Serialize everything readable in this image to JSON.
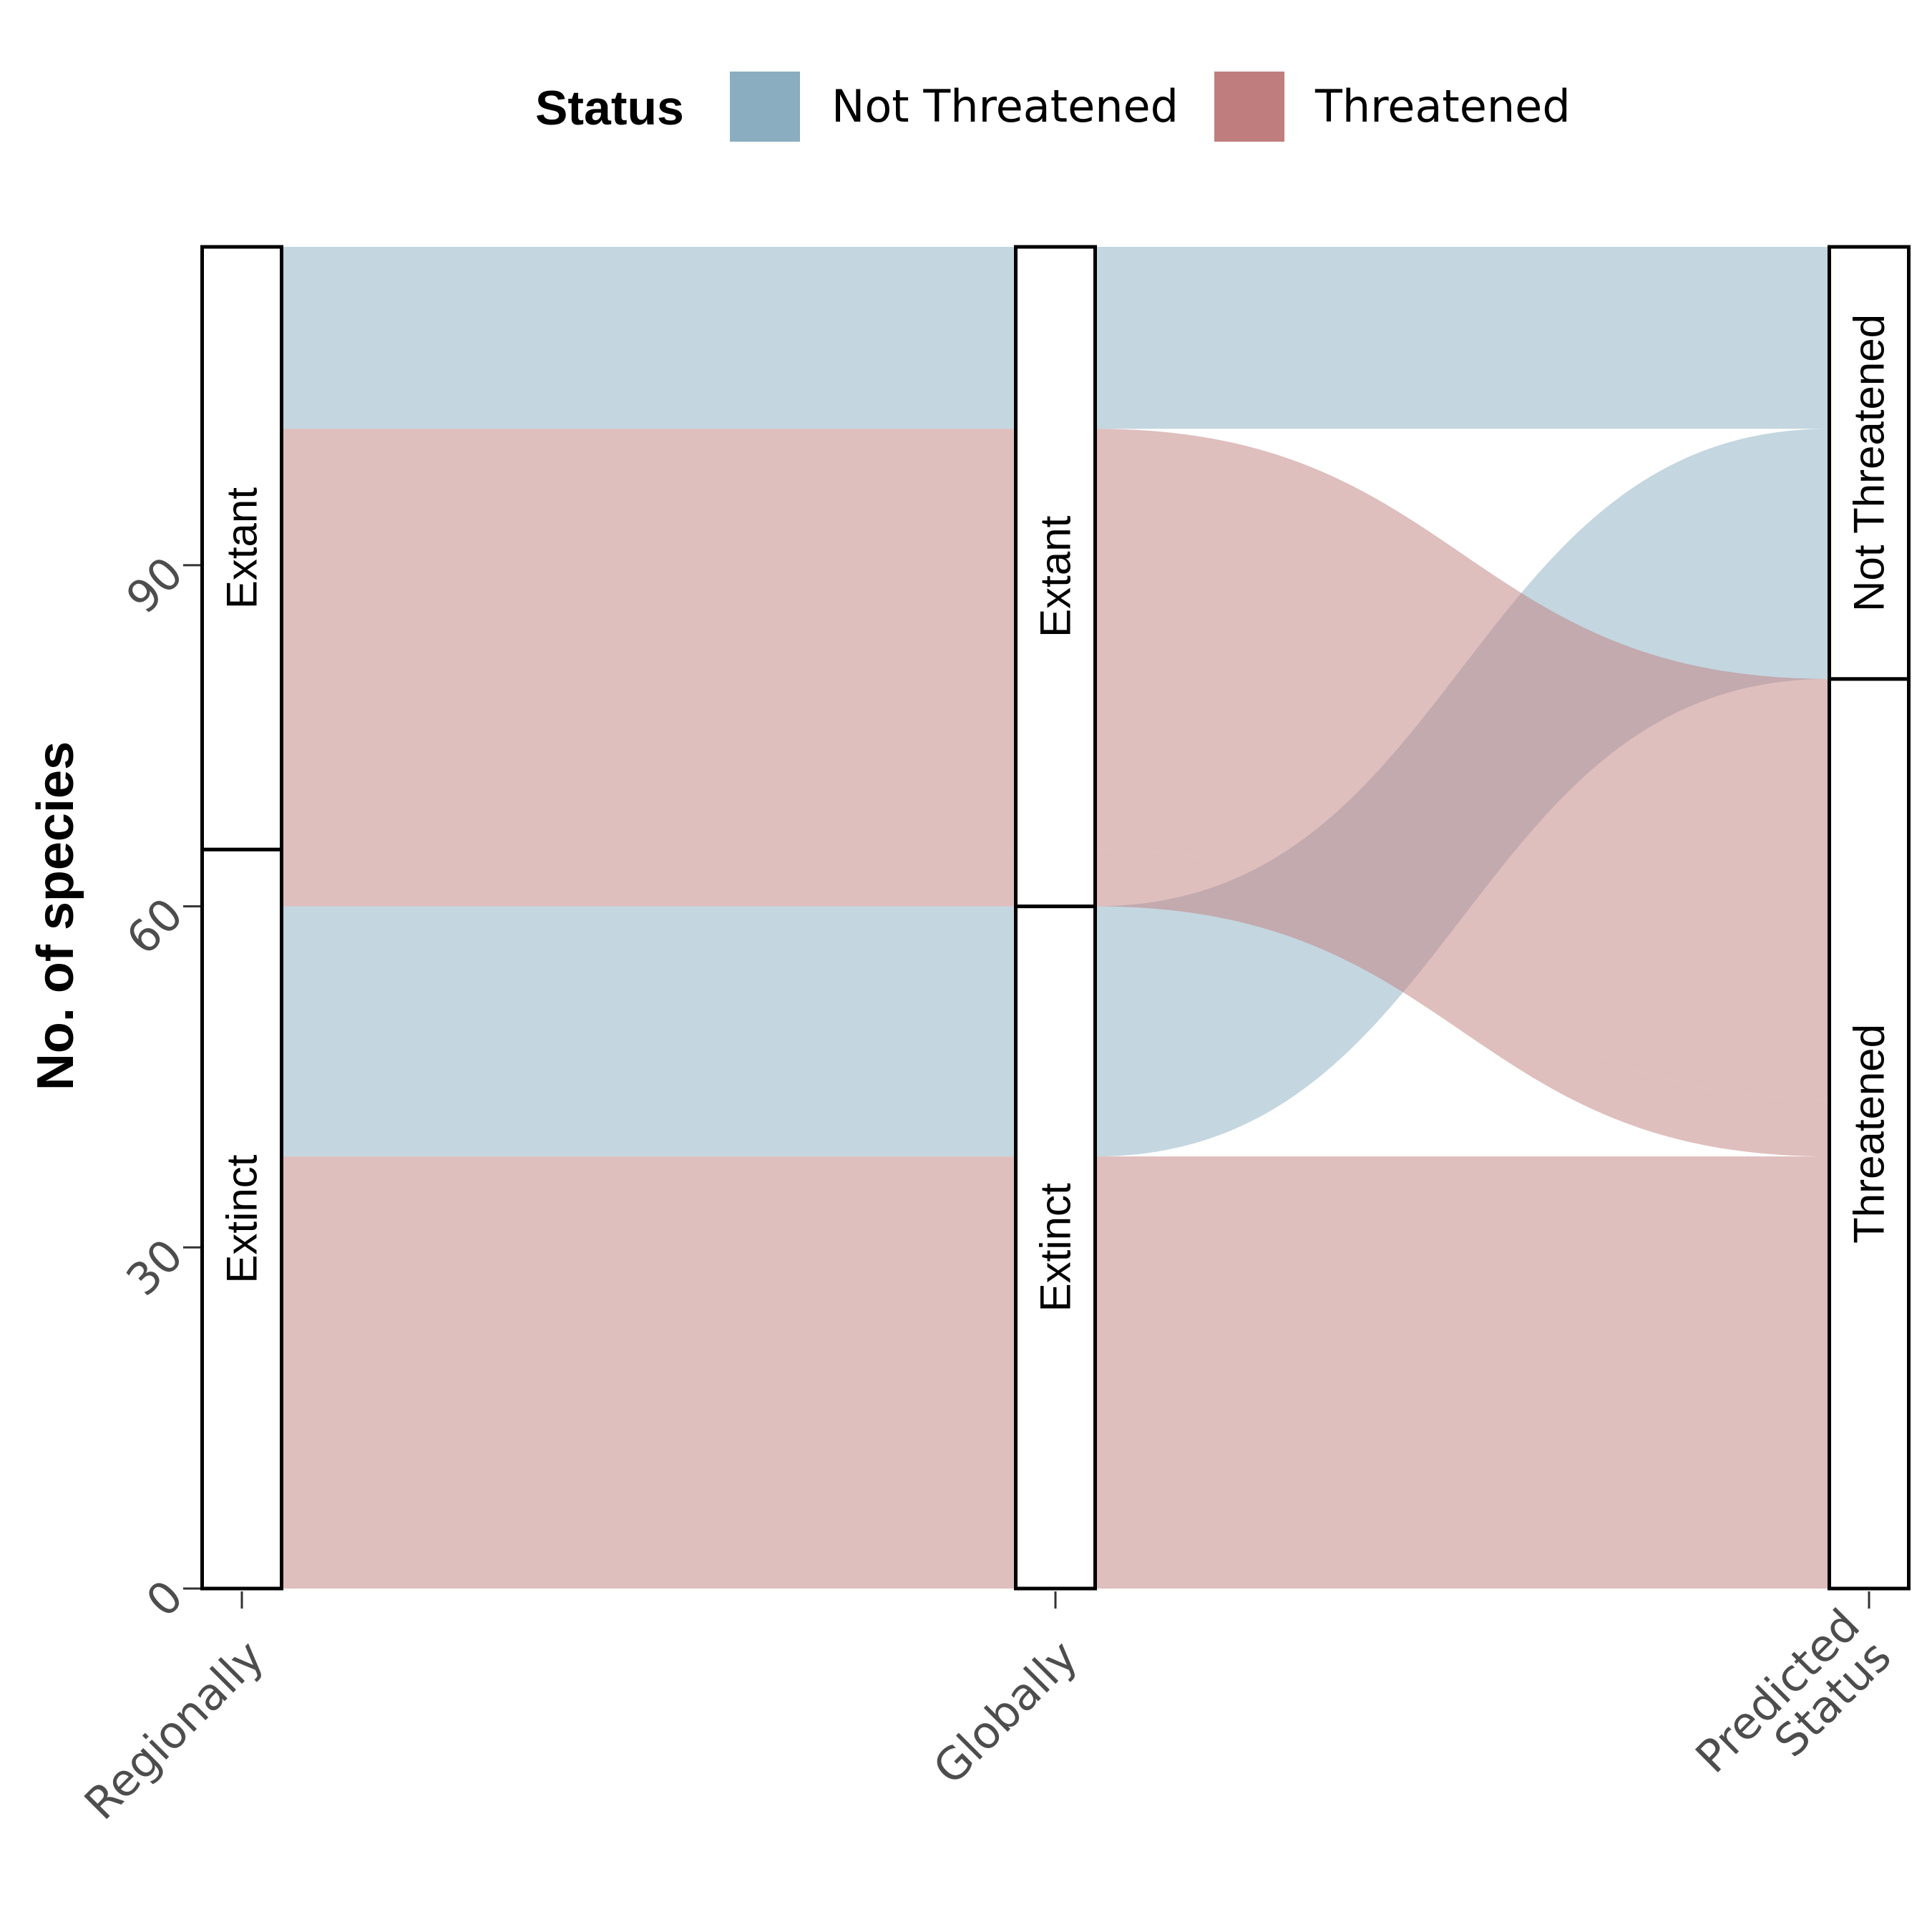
{
  "chart_data": {
    "type": "alluvial",
    "title": "",
    "xlabel": "",
    "ylabel": "No. of species",
    "ylim": [
      0,
      118
    ],
    "yticks": [
      0,
      30,
      60,
      90
    ],
    "axes": [
      "Regionally",
      "Globally",
      "Predicted Status"
    ],
    "axis_labels": [
      [
        "Regionally"
      ],
      [
        "Globally"
      ],
      [
        "Predicted",
        "Status"
      ]
    ],
    "legend": {
      "title": "Status",
      "position": "top",
      "entries": [
        {
          "name": "Not Threatened",
          "color": "#8aadc0"
        },
        {
          "name": "Threatened",
          "color": "#bf7e7d"
        }
      ]
    },
    "strata": [
      [
        {
          "label": "Extinct",
          "value": 65
        },
        {
          "label": "Extant",
          "value": 53
        }
      ],
      [
        {
          "label": "Extinct",
          "value": 60
        },
        {
          "label": "Extant",
          "value": 58
        }
      ],
      [
        {
          "label": "Threatened",
          "value": 80
        },
        {
          "label": "Not Threatened",
          "value": 38
        }
      ]
    ],
    "flows": [
      {
        "path": [
          "Extinct",
          "Extinct",
          "Threatened"
        ],
        "status": "Threatened",
        "value": 38
      },
      {
        "path": [
          "Extinct",
          "Extinct",
          "Not Threatened"
        ],
        "status": "Not Threatened",
        "value": 22
      },
      {
        "path": [
          "Extinct",
          "Extant",
          "Threatened"
        ],
        "status": "Threatened",
        "value": 5
      },
      {
        "path": [
          "Extant",
          "Extant",
          "Threatened"
        ],
        "status": "Threatened",
        "value": 37
      },
      {
        "path": [
          "Extant",
          "Extant",
          "Not Threatened"
        ],
        "status": "Not Threatened",
        "value": 16
      }
    ]
  }
}
